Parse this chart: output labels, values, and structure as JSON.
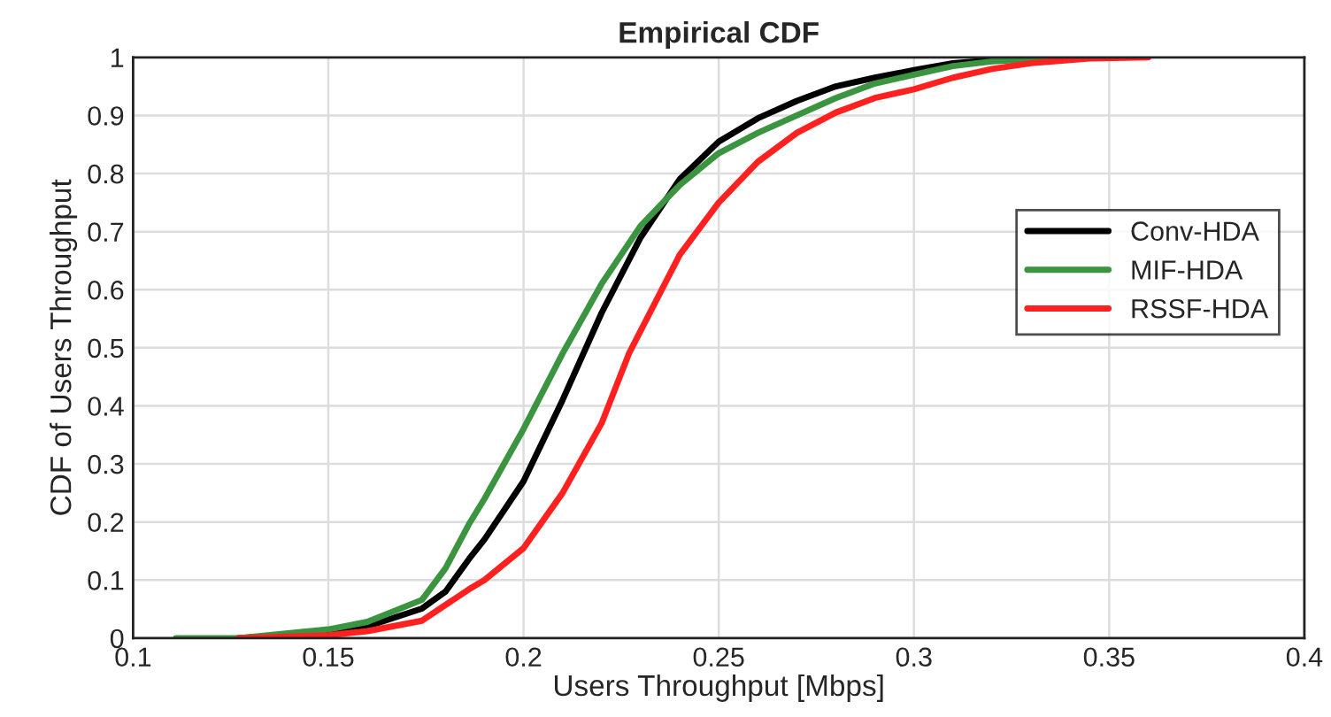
{
  "chart_data": {
    "type": "line",
    "title": "Empirical CDF",
    "xlabel": "Users Throughput [Mbps]",
    "ylabel": "CDF of Users Throughput",
    "xlim": [
      0.1,
      0.4
    ],
    "xticks": [
      0.1,
      0.15,
      0.2,
      0.25,
      0.3,
      0.35,
      0.4
    ],
    "ylim": [
      0,
      1
    ],
    "yticks": [
      0,
      0.1,
      0.2,
      0.3,
      0.4,
      0.5,
      0.6,
      0.7,
      0.8,
      0.9,
      1
    ],
    "grid": true,
    "legend": "right",
    "line_style": "solid",
    "marker": "none",
    "series": [
      {
        "name": "Conv-HDA",
        "color": "#000000",
        "x": [
          0.127,
          0.15,
          0.16,
          0.174,
          0.18,
          0.186,
          0.19,
          0.2,
          0.21,
          0.22,
          0.23,
          0.24,
          0.25,
          0.26,
          0.27,
          0.28,
          0.29,
          0.3,
          0.31,
          0.32,
          0.335
        ],
        "values": [
          0,
          0.01,
          0.02,
          0.051,
          0.08,
          0.136,
          0.17,
          0.27,
          0.41,
          0.56,
          0.69,
          0.79,
          0.855,
          0.895,
          0.925,
          0.95,
          0.965,
          0.978,
          0.99,
          0.995,
          1
        ]
      },
      {
        "name": "MIF-HDA",
        "color": "#3a9440",
        "x": [
          0.111,
          0.127,
          0.15,
          0.16,
          0.174,
          0.18,
          0.186,
          0.19,
          0.2,
          0.21,
          0.22,
          0.23,
          0.24,
          0.25,
          0.26,
          0.27,
          0.28,
          0.29,
          0.3,
          0.31,
          0.32,
          0.34
        ],
        "values": [
          0,
          0,
          0.015,
          0.028,
          0.066,
          0.12,
          0.196,
          0.24,
          0.36,
          0.49,
          0.61,
          0.71,
          0.78,
          0.835,
          0.87,
          0.9,
          0.93,
          0.955,
          0.97,
          0.985,
          0.993,
          1
        ]
      },
      {
        "name": "RSSF-HDA",
        "color": "#ff2020",
        "x": [
          0.127,
          0.15,
          0.16,
          0.174,
          0.186,
          0.19,
          0.2,
          0.21,
          0.22,
          0.227,
          0.24,
          0.25,
          0.26,
          0.27,
          0.28,
          0.29,
          0.3,
          0.31,
          0.32,
          0.33,
          0.345,
          0.36
        ],
        "values": [
          0,
          0.005,
          0.012,
          0.03,
          0.084,
          0.1,
          0.155,
          0.25,
          0.37,
          0.49,
          0.66,
          0.75,
          0.82,
          0.87,
          0.905,
          0.93,
          0.945,
          0.965,
          0.98,
          0.99,
          0.998,
          1
        ]
      }
    ]
  }
}
